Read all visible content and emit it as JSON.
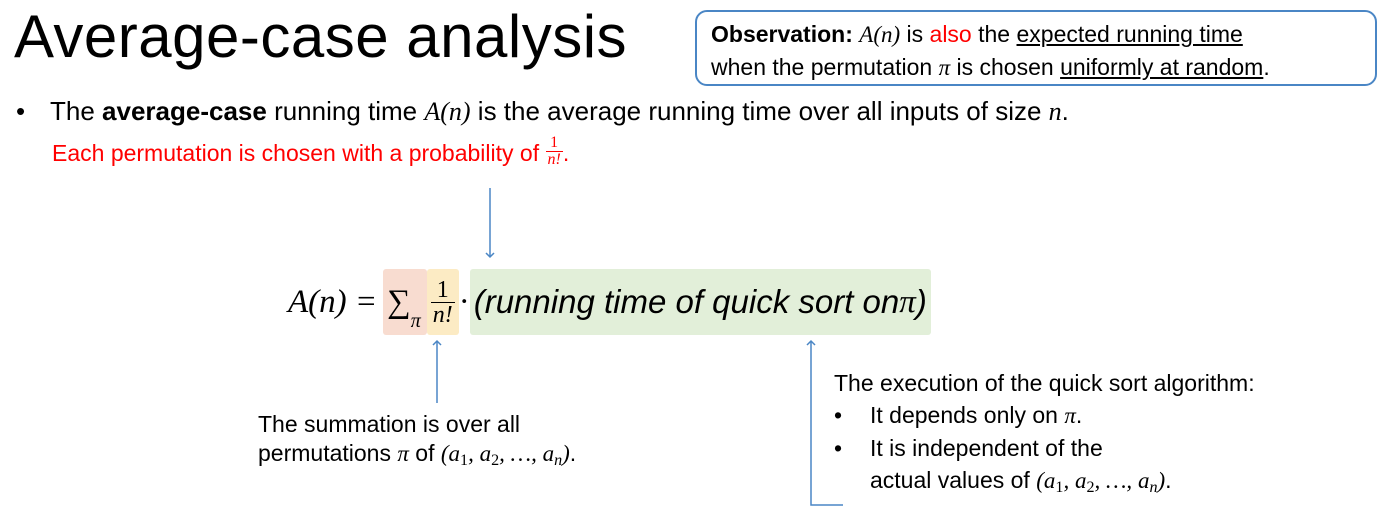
{
  "slide": {
    "title": "Average-case analysis",
    "observation": {
      "label": "Observation:",
      "a_of_n": "A(n)",
      "is": " is ",
      "also": "also",
      "the": " the ",
      "expected_running_time": "expected running time",
      "when": "when the permutation ",
      "pi": "π",
      "is_chosen": " is chosen ",
      "uniformly_at_random": "uniformly at random",
      "period": "."
    },
    "bullet": {
      "the": "The ",
      "average_case": "average-case",
      "running_time": " running time ",
      "a_of_n": "A(n)",
      "rest": " is the average running time over all inputs of size ",
      "n": "n",
      "period": "."
    },
    "probability_note": {
      "text": "Each permutation is chosen with a probability of ",
      "frac_num": "1",
      "frac_den": "n!",
      "period": "."
    },
    "formula": {
      "lhs": "A(n) = ",
      "sum": "∑",
      "sum_sub": "π",
      "frac_num": "1",
      "frac_den": "n!",
      "dot": " · ",
      "running_time": "(running time of quick sort on ",
      "pi": "π",
      "close": ")"
    },
    "summation_note": {
      "line1": "The summation is over all",
      "line2_text": "permutations ",
      "line2_pi": "π",
      "line2_of": " of ",
      "tuple": "(a1, a2, …, an)",
      "period": "."
    },
    "execution_note": {
      "heading": "The execution of the quick sort algorithm:",
      "bullet_char": "•",
      "item1_text": "It depends only on ",
      "item1_pi": "π",
      "item1_period": ".",
      "item2_line1": "It is independent of the",
      "item2_line2": "actual values of ",
      "tuple": "(a1, a2, …, an)",
      "period": "."
    },
    "colors": {
      "red": "#ff0000",
      "arrow_blue": "#4a86c5",
      "sum_highlight": "#f8dcd0",
      "frac_highlight": "#fcebc4",
      "running_time_highlight": "#e2efd9"
    }
  }
}
